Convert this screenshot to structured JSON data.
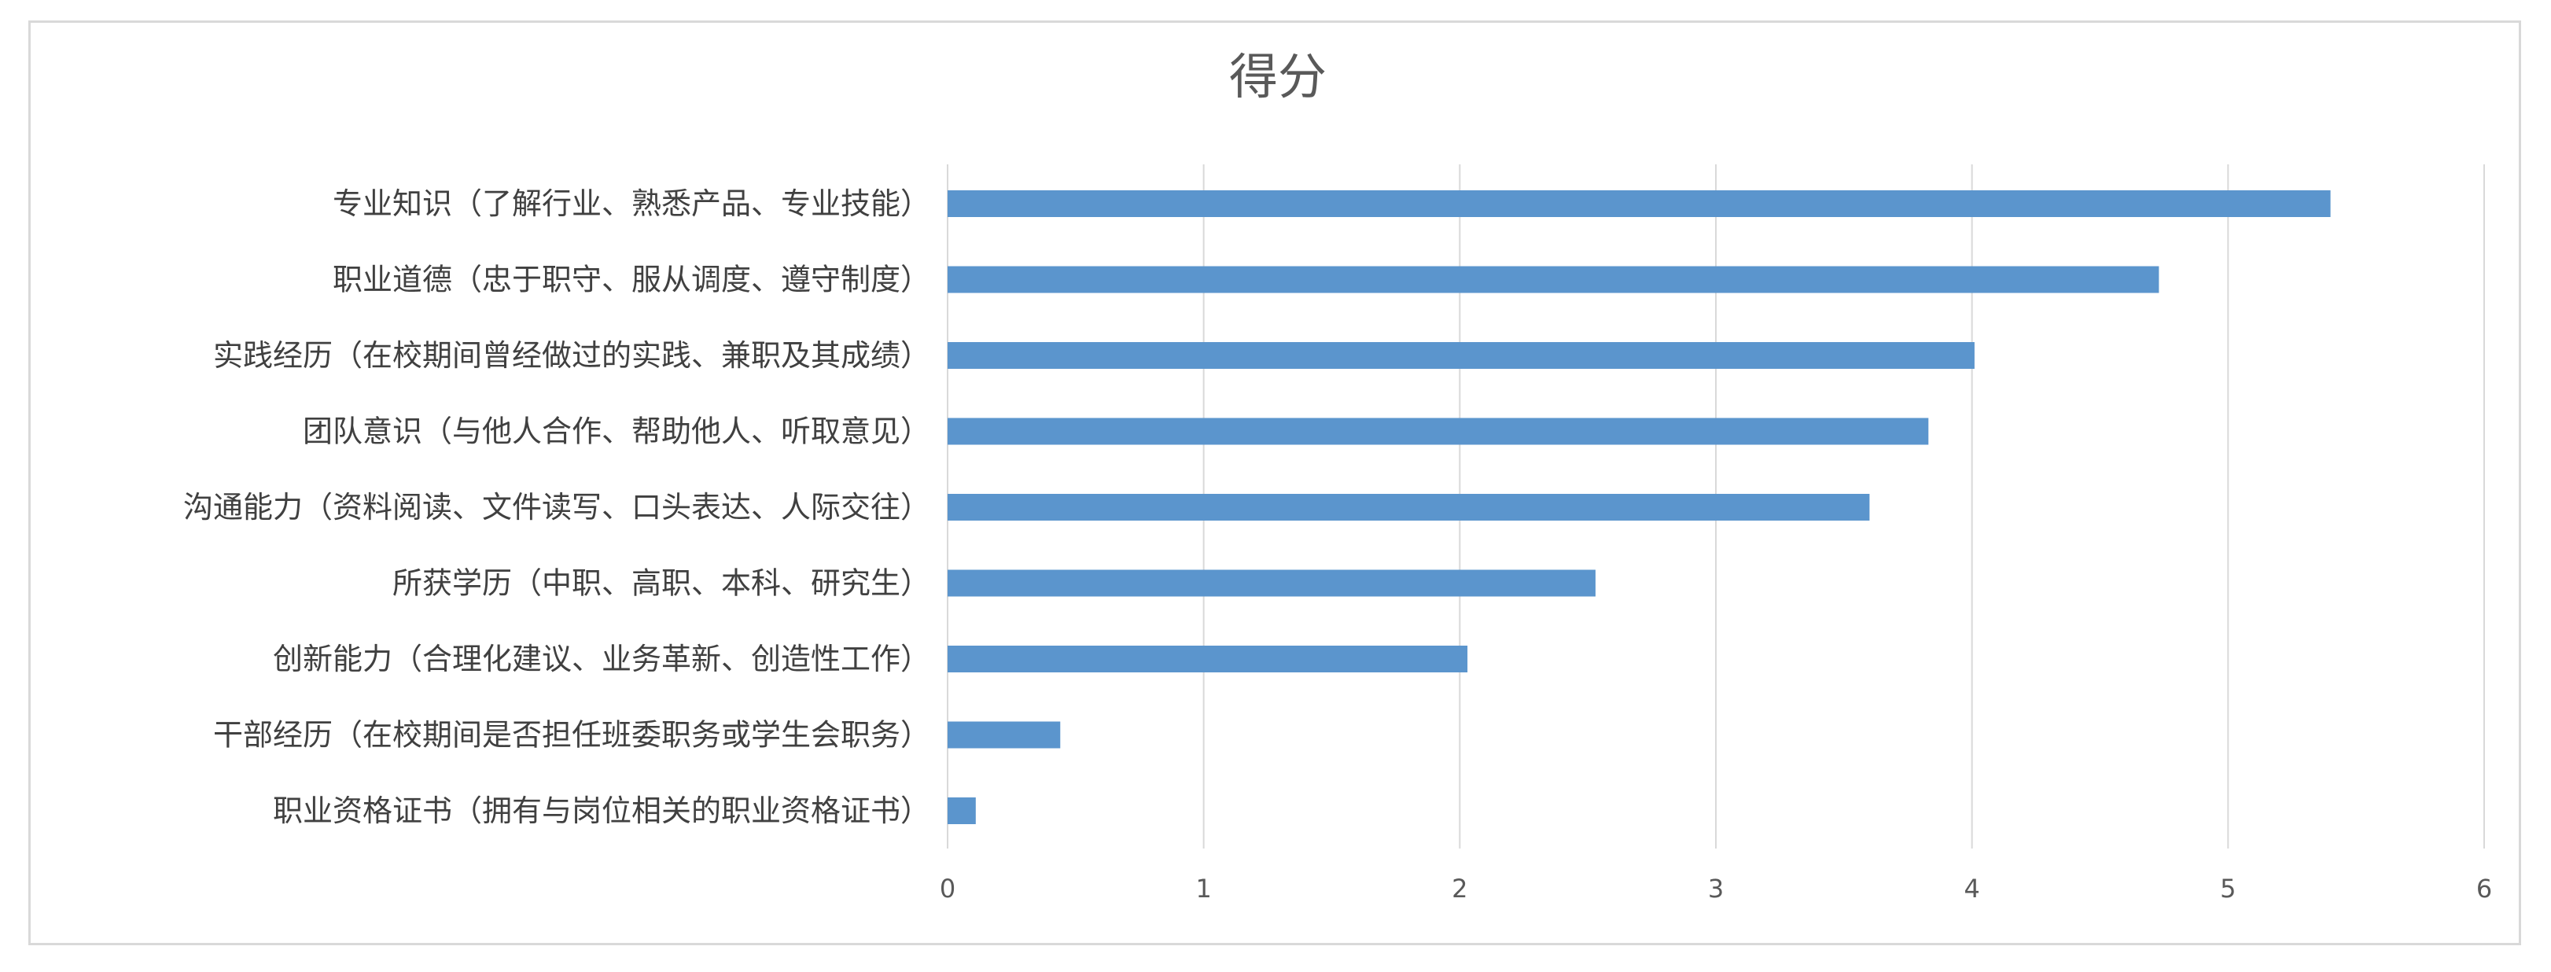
{
  "chart_data": {
    "type": "bar",
    "orientation": "horizontal",
    "title": "得分",
    "categories": [
      "专业知识（了解行业、熟悉产品、专业技能）",
      "职业道德（忠于职守、服从调度、遵守制度）",
      "实践经历（在校期间曾经做过的实践、兼职及其成绩）",
      "团队意识（与他人合作、帮助他人、听取意见）",
      "沟通能力（资料阅读、文件读写、口头表达、人际交往）",
      "所获学历（中职、高职、本科、研究生）",
      "创新能力（合理化建议、业务革新、创造性工作）",
      "干部经历（在校期间是否担任班委职务或学生会职务）",
      "职业资格证书（拥有与岗位相关的职业资格证书）"
    ],
    "values": [
      5.4,
      4.73,
      4.01,
      3.83,
      3.6,
      2.53,
      2.03,
      0.44,
      0.11
    ],
    "xlim": [
      0,
      6
    ],
    "xticks": [
      "0",
      "1",
      "2",
      "3",
      "4",
      "5",
      "6"
    ],
    "xlabel": "",
    "ylabel": "",
    "grid": "vertical",
    "legend": "none",
    "bar_color": "#5B95CD",
    "grid_color": "#d9d9d9"
  }
}
